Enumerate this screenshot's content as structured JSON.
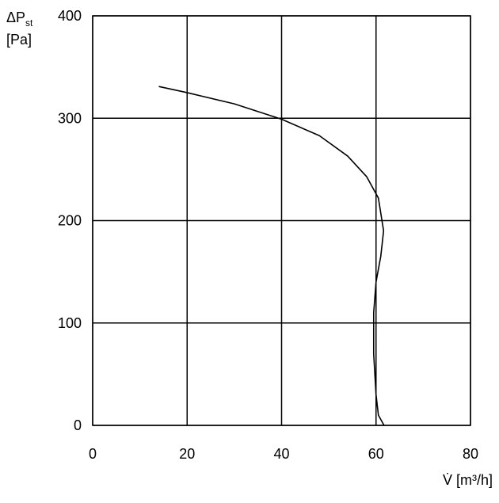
{
  "chart_data": {
    "type": "line",
    "y_label": "ΔP",
    "y_label_sub": "st",
    "y_label_unit": "[Pa]",
    "x_label": "V̇ [m³/h]",
    "xlim": [
      0,
      80
    ],
    "xticks": [
      0,
      20,
      40,
      60,
      80
    ],
    "ylim": [
      0,
      400
    ],
    "yticks": [
      0,
      100,
      200,
      300,
      400
    ],
    "grid": true,
    "series": [
      {
        "color": "#000000",
        "x": [
          14,
          20,
          30,
          40,
          48,
          54,
          58,
          60.5,
          61.6,
          61,
          60,
          59.5,
          59.5,
          60,
          60.5,
          61.7
        ],
        "values": [
          331,
          325,
          314,
          299,
          283,
          263,
          243,
          222,
          190,
          165,
          140,
          110,
          70,
          30,
          10,
          0
        ]
      }
    ]
  }
}
